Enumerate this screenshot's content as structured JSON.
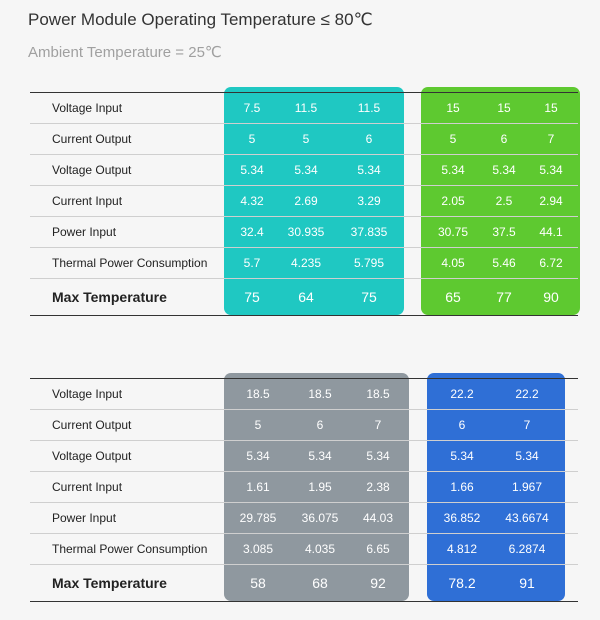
{
  "header": {
    "title": "Power Module Operating Temperature ≤ 80℃",
    "subtitle": "Ambient Temperature = 25℃"
  },
  "tables": [
    {
      "row_labels": [
        "Voltage Input",
        "Current Output",
        "Voltage Output",
        "Current Input",
        "Power Input",
        "Thermal Power Consumption",
        "Max Temperature"
      ],
      "groups": [
        {
          "rows": [
            [
              7.5,
              11.5,
              11.5
            ],
            [
              5,
              5,
              6
            ],
            [
              5.34,
              5.34,
              5.34
            ],
            [
              4.32,
              2.69,
              3.29
            ],
            [
              32.4,
              30.935,
              37.835
            ],
            [
              5.7,
              4.235,
              5.795
            ],
            [
              75,
              64,
              75
            ]
          ]
        },
        {
          "rows": [
            [
              15,
              15,
              15
            ],
            [
              5,
              6,
              7
            ],
            [
              5.34,
              5.34,
              5.34
            ],
            [
              2.05,
              2.5,
              2.94
            ],
            [
              30.75,
              37.5,
              44.1
            ],
            [
              4.05,
              5.46,
              6.72
            ],
            [
              65,
              77,
              90
            ]
          ]
        }
      ]
    },
    {
      "row_labels": [
        "Voltage Input",
        "Current Output",
        "Voltage Output",
        "Current Input",
        "Power Input",
        "Thermal Power Consumption",
        "Max Temperature"
      ],
      "groups": [
        {
          "rows": [
            [
              18.5,
              18.5,
              18.5
            ],
            [
              5,
              6,
              7
            ],
            [
              5.34,
              5.34,
              5.34
            ],
            [
              1.61,
              1.95,
              2.38
            ],
            [
              29.785,
              36.075,
              44.03
            ],
            [
              3.085,
              4.035,
              6.65
            ],
            [
              58,
              68,
              92
            ]
          ]
        },
        {
          "rows": [
            [
              22.2,
              22.2
            ],
            [
              6,
              7
            ],
            [
              5.34,
              5.34
            ],
            [
              1.66,
              1.967
            ],
            [
              36.852,
              43.6674
            ],
            [
              4.812,
              6.2874
            ],
            [
              78.2,
              91
            ]
          ]
        }
      ]
    }
  ]
}
